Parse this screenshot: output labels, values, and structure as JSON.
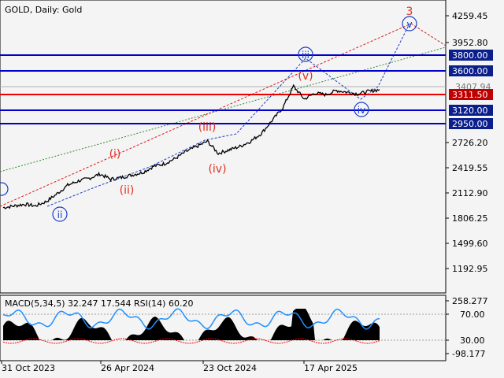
{
  "header": {
    "title": "GOLD, Daily:  Gold"
  },
  "indicator": {
    "label": "MACD(5,34,5) 32.247 17.544 RSI(14) 60.20"
  },
  "colors": {
    "price": "#000000",
    "blue_line": "#0000ff",
    "red_line": "#ff0000",
    "wave_red": "#e03020",
    "wave_blue": "#1a3cc8",
    "trend_green": "#2e8b2e",
    "rsi": "#1e90ff",
    "macd": "#000000",
    "macd_signal": "#ff0000",
    "label_bg": "#0a1e8c",
    "current_bg": "#c00000"
  },
  "chart_data": [
    {
      "type": "line",
      "title": "GOLD, Daily:  Gold",
      "y_axis_ticks": [
        "4259.45",
        "3952.80",
        "2726.20",
        "2419.55",
        "2112.90",
        "1806.25",
        "1499.60",
        "1192.95"
      ],
      "ylim": [
        1000,
        4400
      ],
      "x_axis_ticks": [
        "31 Oct 2023",
        "26 Apr 2024",
        "23 Oct 2024",
        "17 Apr 2025"
      ],
      "series": [
        {
          "values": [
            1990,
            2010,
            2030,
            2010,
            2060,
            2150,
            2250,
            2300,
            2330,
            2380,
            2320,
            2340,
            2370,
            2400,
            2470,
            2500,
            2560,
            2640,
            2700,
            2760,
            2620,
            2660,
            2700,
            2760,
            2850,
            3000,
            3150,
            3400,
            3250,
            3320,
            3300,
            3350,
            3330,
            3310,
            3340,
            3360
          ]
        }
      ],
      "levels": [
        {
          "value": 3800,
          "label": "3800.00",
          "style": "blue"
        },
        {
          "value": 3600,
          "label": "3600.00",
          "style": "blue"
        },
        {
          "value": 3407.94,
          "label": "3407.94",
          "style": "current"
        },
        {
          "value": 3311.5,
          "label": "3311.50",
          "style": "red"
        },
        {
          "value": 3120,
          "label": "3120.00",
          "style": "blue"
        },
        {
          "value": 2950,
          "label": "2950.00",
          "style": "blue"
        }
      ],
      "wave_labels": [
        {
          "text": "(i)",
          "color": "red"
        },
        {
          "text": "(ii)",
          "color": "red"
        },
        {
          "text": "(iii)",
          "color": "red"
        },
        {
          "text": "(iv)",
          "color": "red"
        },
        {
          "text": "(v)",
          "color": "red"
        },
        {
          "text": "3",
          "color": "red"
        },
        {
          "text": "ii",
          "color": "blue"
        },
        {
          "text": "iii",
          "color": "blue"
        },
        {
          "text": "iv",
          "color": "blue"
        },
        {
          "text": "v",
          "color": "blue"
        }
      ]
    },
    {
      "type": "line",
      "title": "MACD(5,34,5) 32.247 17.544 RSI(14) 60.20",
      "y_axis_ticks": [
        "258.277",
        "70.00",
        "30.00",
        "-98.177"
      ],
      "ylim": [
        -98.177,
        258.277
      ]
    }
  ]
}
